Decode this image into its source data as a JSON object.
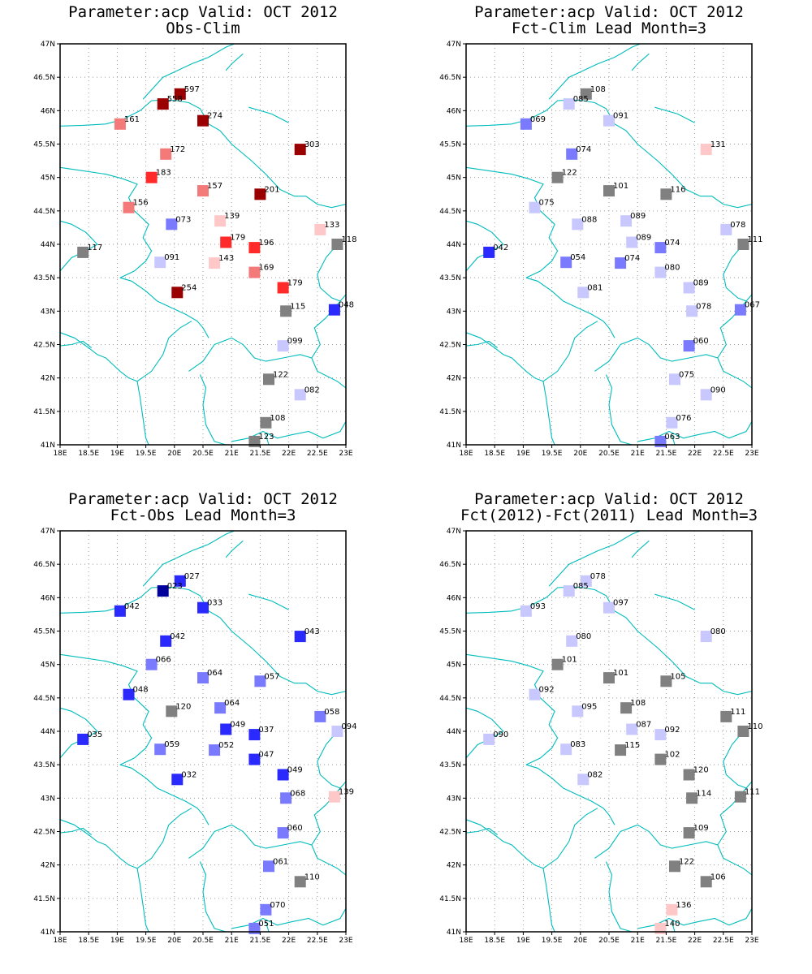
{
  "colors": {
    "dark_red": "#9b0000",
    "red": "#ff2a2a",
    "light_red": "#f47a7a",
    "pale_red": "#ffc8c8",
    "gray": "#808080",
    "pale_blue": "#c8c8ff",
    "light_blue": "#7a7aff",
    "blue": "#2a2aff",
    "dark_blue": "#00009b",
    "border": "#00bcbc"
  },
  "axes": {
    "lon_min": 18,
    "lon_max": 23,
    "lat_min": 41,
    "lat_max": 47,
    "lon_ticks": [
      "18E",
      "18.5E",
      "19E",
      "19.5E",
      "20E",
      "20.5E",
      "21E",
      "21.5E",
      "22E",
      "22.5E",
      "23E"
    ],
    "lat_ticks": [
      "41N",
      "41.5N",
      "42N",
      "42.5N",
      "43N",
      "43.5N",
      "44N",
      "44.5N",
      "45N",
      "45.5N",
      "46N",
      "46.5N",
      "47N"
    ]
  },
  "panels": [
    {
      "title1": "Parameter:acp Valid: OCT 2012",
      "title2": "Obs-Clim",
      "stations": [
        {
          "lon": 20.1,
          "lat": 46.25,
          "label": "597",
          "color": "dark_red"
        },
        {
          "lon": 19.8,
          "lat": 46.1,
          "label": "558",
          "color": "dark_red"
        },
        {
          "lon": 20.5,
          "lat": 45.85,
          "label": "274",
          "color": "dark_red"
        },
        {
          "lon": 19.05,
          "lat": 45.8,
          "label": "161",
          "color": "light_red"
        },
        {
          "lon": 22.2,
          "lat": 45.42,
          "label": "303",
          "color": "dark_red"
        },
        {
          "lon": 19.85,
          "lat": 45.35,
          "label": "172",
          "color": "light_red"
        },
        {
          "lon": 19.6,
          "lat": 45.0,
          "label": "183",
          "color": "red"
        },
        {
          "lon": 20.5,
          "lat": 44.8,
          "label": "157",
          "color": "light_red"
        },
        {
          "lon": 21.5,
          "lat": 44.75,
          "label": "201",
          "color": "dark_red"
        },
        {
          "lon": 19.2,
          "lat": 44.55,
          "label": "156",
          "color": "light_red"
        },
        {
          "lon": 20.8,
          "lat": 44.35,
          "label": "139",
          "color": "pale_red"
        },
        {
          "lon": 19.95,
          "lat": 44.3,
          "label": "073",
          "color": "light_blue"
        },
        {
          "lon": 22.55,
          "lat": 44.22,
          "label": "133",
          "color": "pale_red"
        },
        {
          "lon": 20.9,
          "lat": 44.03,
          "label": "179",
          "color": "red"
        },
        {
          "lon": 22.85,
          "lat": 44.0,
          "label": "118",
          "color": "gray"
        },
        {
          "lon": 21.4,
          "lat": 43.95,
          "label": "196",
          "color": "red"
        },
        {
          "lon": 18.4,
          "lat": 43.88,
          "label": "117",
          "color": "gray"
        },
        {
          "lon": 19.75,
          "lat": 43.73,
          "label": "091",
          "color": "pale_blue"
        },
        {
          "lon": 20.7,
          "lat": 43.72,
          "label": "143",
          "color": "pale_red"
        },
        {
          "lon": 21.4,
          "lat": 43.58,
          "label": "169",
          "color": "light_red"
        },
        {
          "lon": 21.9,
          "lat": 43.35,
          "label": "179",
          "color": "red"
        },
        {
          "lon": 20.05,
          "lat": 43.28,
          "label": "254",
          "color": "dark_red"
        },
        {
          "lon": 21.95,
          "lat": 43.0,
          "label": "115",
          "color": "gray"
        },
        {
          "lon": 22.8,
          "lat": 43.02,
          "label": "048",
          "color": "blue"
        },
        {
          "lon": 21.9,
          "lat": 42.48,
          "label": "099",
          "color": "pale_blue"
        },
        {
          "lon": 21.65,
          "lat": 41.98,
          "label": "122",
          "color": "gray"
        },
        {
          "lon": 22.2,
          "lat": 41.75,
          "label": "082",
          "color": "pale_blue"
        },
        {
          "lon": 21.6,
          "lat": 41.33,
          "label": "108",
          "color": "gray"
        },
        {
          "lon": 21.4,
          "lat": 41.05,
          "label": "123",
          "color": "gray"
        }
      ]
    },
    {
      "title1": "Parameter:acp Valid: OCT 2012",
      "title2": "Fct-Clim Lead Month=3",
      "stations": [
        {
          "lon": 20.1,
          "lat": 46.25,
          "label": "108",
          "color": "gray"
        },
        {
          "lon": 19.8,
          "lat": 46.1,
          "label": "085",
          "color": "pale_blue"
        },
        {
          "lon": 20.5,
          "lat": 45.85,
          "label": "091",
          "color": "pale_blue"
        },
        {
          "lon": 19.05,
          "lat": 45.8,
          "label": "069",
          "color": "light_blue"
        },
        {
          "lon": 22.2,
          "lat": 45.42,
          "label": "131",
          "color": "pale_red"
        },
        {
          "lon": 19.85,
          "lat": 45.35,
          "label": "074",
          "color": "light_blue"
        },
        {
          "lon": 19.6,
          "lat": 45.0,
          "label": "122",
          "color": "gray"
        },
        {
          "lon": 20.5,
          "lat": 44.8,
          "label": "101",
          "color": "gray"
        },
        {
          "lon": 21.5,
          "lat": 44.75,
          "label": "116",
          "color": "gray"
        },
        {
          "lon": 19.2,
          "lat": 44.55,
          "label": "075",
          "color": "pale_blue"
        },
        {
          "lon": 20.8,
          "lat": 44.35,
          "label": "089",
          "color": "pale_blue"
        },
        {
          "lon": 19.95,
          "lat": 44.3,
          "label": "088",
          "color": "pale_blue"
        },
        {
          "lon": 22.55,
          "lat": 44.22,
          "label": "078",
          "color": "pale_blue"
        },
        {
          "lon": 20.9,
          "lat": 44.03,
          "label": "089",
          "color": "pale_blue"
        },
        {
          "lon": 22.85,
          "lat": 44.0,
          "label": "111",
          "color": "gray"
        },
        {
          "lon": 21.4,
          "lat": 43.95,
          "label": "074",
          "color": "light_blue"
        },
        {
          "lon": 18.4,
          "lat": 43.88,
          "label": "042",
          "color": "blue"
        },
        {
          "lon": 19.75,
          "lat": 43.73,
          "label": "054",
          "color": "light_blue"
        },
        {
          "lon": 20.7,
          "lat": 43.72,
          "label": "074",
          "color": "light_blue"
        },
        {
          "lon": 21.4,
          "lat": 43.58,
          "label": "080",
          "color": "pale_blue"
        },
        {
          "lon": 21.9,
          "lat": 43.35,
          "label": "089",
          "color": "pale_blue"
        },
        {
          "lon": 20.05,
          "lat": 43.28,
          "label": "081",
          "color": "pale_blue"
        },
        {
          "lon": 21.95,
          "lat": 43.0,
          "label": "078",
          "color": "pale_blue"
        },
        {
          "lon": 22.8,
          "lat": 43.02,
          "label": "067",
          "color": "light_blue"
        },
        {
          "lon": 21.9,
          "lat": 42.48,
          "label": "060",
          "color": "light_blue"
        },
        {
          "lon": 21.65,
          "lat": 41.98,
          "label": "075",
          "color": "pale_blue"
        },
        {
          "lon": 22.2,
          "lat": 41.75,
          "label": "090",
          "color": "pale_blue"
        },
        {
          "lon": 21.6,
          "lat": 41.33,
          "label": "076",
          "color": "pale_blue"
        },
        {
          "lon": 21.4,
          "lat": 41.05,
          "label": "063",
          "color": "light_blue"
        }
      ]
    },
    {
      "title1": "Parameter:acp Valid: OCT 2012",
      "title2": "Fct-Obs Lead Month=3",
      "stations": [
        {
          "lon": 20.1,
          "lat": 46.25,
          "label": "027",
          "color": "blue"
        },
        {
          "lon": 19.8,
          "lat": 46.1,
          "label": "023",
          "color": "dark_blue"
        },
        {
          "lon": 20.5,
          "lat": 45.85,
          "label": "033",
          "color": "blue"
        },
        {
          "lon": 19.05,
          "lat": 45.8,
          "label": "042",
          "color": "blue"
        },
        {
          "lon": 22.2,
          "lat": 45.42,
          "label": "043",
          "color": "blue"
        },
        {
          "lon": 19.85,
          "lat": 45.35,
          "label": "042",
          "color": "blue"
        },
        {
          "lon": 19.6,
          "lat": 45.0,
          "label": "066",
          "color": "light_blue"
        },
        {
          "lon": 20.5,
          "lat": 44.8,
          "label": "064",
          "color": "light_blue"
        },
        {
          "lon": 21.5,
          "lat": 44.75,
          "label": "057",
          "color": "light_blue"
        },
        {
          "lon": 19.2,
          "lat": 44.55,
          "label": "048",
          "color": "blue"
        },
        {
          "lon": 20.8,
          "lat": 44.35,
          "label": "064",
          "color": "light_blue"
        },
        {
          "lon": 19.95,
          "lat": 44.3,
          "label": "120",
          "color": "gray"
        },
        {
          "lon": 22.55,
          "lat": 44.22,
          "label": "058",
          "color": "light_blue"
        },
        {
          "lon": 20.9,
          "lat": 44.03,
          "label": "049",
          "color": "blue"
        },
        {
          "lon": 22.85,
          "lat": 44.0,
          "label": "094",
          "color": "pale_blue"
        },
        {
          "lon": 21.4,
          "lat": 43.95,
          "label": "037",
          "color": "blue"
        },
        {
          "lon": 18.4,
          "lat": 43.88,
          "label": "035",
          "color": "blue"
        },
        {
          "lon": 19.75,
          "lat": 43.73,
          "label": "059",
          "color": "light_blue"
        },
        {
          "lon": 20.7,
          "lat": 43.72,
          "label": "052",
          "color": "light_blue"
        },
        {
          "lon": 21.4,
          "lat": 43.58,
          "label": "047",
          "color": "blue"
        },
        {
          "lon": 21.9,
          "lat": 43.35,
          "label": "049",
          "color": "blue"
        },
        {
          "lon": 20.05,
          "lat": 43.28,
          "label": "032",
          "color": "blue"
        },
        {
          "lon": 21.95,
          "lat": 43.0,
          "label": "068",
          "color": "light_blue"
        },
        {
          "lon": 22.8,
          "lat": 43.02,
          "label": "139",
          "color": "pale_red"
        },
        {
          "lon": 21.9,
          "lat": 42.48,
          "label": "060",
          "color": "light_blue"
        },
        {
          "lon": 21.65,
          "lat": 41.98,
          "label": "061",
          "color": "light_blue"
        },
        {
          "lon": 22.2,
          "lat": 41.75,
          "label": "110",
          "color": "gray"
        },
        {
          "lon": 21.6,
          "lat": 41.33,
          "label": "070",
          "color": "light_blue"
        },
        {
          "lon": 21.4,
          "lat": 41.05,
          "label": "051",
          "color": "light_blue"
        }
      ]
    },
    {
      "title1": "Parameter:acp Valid: OCT 2012",
      "title2": "Fct(2012)-Fct(2011) Lead Month=3",
      "stations": [
        {
          "lon": 20.1,
          "lat": 46.25,
          "label": "078",
          "color": "pale_blue"
        },
        {
          "lon": 19.8,
          "lat": 46.1,
          "label": "085",
          "color": "pale_blue"
        },
        {
          "lon": 20.5,
          "lat": 45.85,
          "label": "097",
          "color": "pale_blue"
        },
        {
          "lon": 19.05,
          "lat": 45.8,
          "label": "093",
          "color": "pale_blue"
        },
        {
          "lon": 22.2,
          "lat": 45.42,
          "label": "080",
          "color": "pale_blue"
        },
        {
          "lon": 19.85,
          "lat": 45.35,
          "label": "080",
          "color": "pale_blue"
        },
        {
          "lon": 19.6,
          "lat": 45.0,
          "label": "101",
          "color": "gray"
        },
        {
          "lon": 20.5,
          "lat": 44.8,
          "label": "101",
          "color": "gray"
        },
        {
          "lon": 21.5,
          "lat": 44.75,
          "label": "105",
          "color": "gray"
        },
        {
          "lon": 19.2,
          "lat": 44.55,
          "label": "092",
          "color": "pale_blue"
        },
        {
          "lon": 20.8,
          "lat": 44.35,
          "label": "108",
          "color": "gray"
        },
        {
          "lon": 19.95,
          "lat": 44.3,
          "label": "095",
          "color": "pale_blue"
        },
        {
          "lon": 22.55,
          "lat": 44.22,
          "label": "111",
          "color": "gray"
        },
        {
          "lon": 20.9,
          "lat": 44.03,
          "label": "087",
          "color": "pale_blue"
        },
        {
          "lon": 22.85,
          "lat": 44.0,
          "label": "110",
          "color": "gray"
        },
        {
          "lon": 21.4,
          "lat": 43.95,
          "label": "092",
          "color": "pale_blue"
        },
        {
          "lon": 18.4,
          "lat": 43.88,
          "label": "090",
          "color": "pale_blue"
        },
        {
          "lon": 19.75,
          "lat": 43.73,
          "label": "083",
          "color": "pale_blue"
        },
        {
          "lon": 20.7,
          "lat": 43.72,
          "label": "115",
          "color": "gray"
        },
        {
          "lon": 21.4,
          "lat": 43.58,
          "label": "102",
          "color": "gray"
        },
        {
          "lon": 21.9,
          "lat": 43.35,
          "label": "120",
          "color": "gray"
        },
        {
          "lon": 20.05,
          "lat": 43.28,
          "label": "082",
          "color": "pale_blue"
        },
        {
          "lon": 21.95,
          "lat": 43.0,
          "label": "114",
          "color": "gray"
        },
        {
          "lon": 22.8,
          "lat": 43.02,
          "label": "111",
          "color": "gray"
        },
        {
          "lon": 21.9,
          "lat": 42.48,
          "label": "109",
          "color": "gray"
        },
        {
          "lon": 21.65,
          "lat": 41.98,
          "label": "122",
          "color": "gray"
        },
        {
          "lon": 22.2,
          "lat": 41.75,
          "label": "106",
          "color": "gray"
        },
        {
          "lon": 21.6,
          "lat": 41.33,
          "label": "136",
          "color": "pale_red"
        },
        {
          "lon": 21.4,
          "lat": 41.05,
          "label": "140",
          "color": "pale_red"
        }
      ]
    }
  ]
}
